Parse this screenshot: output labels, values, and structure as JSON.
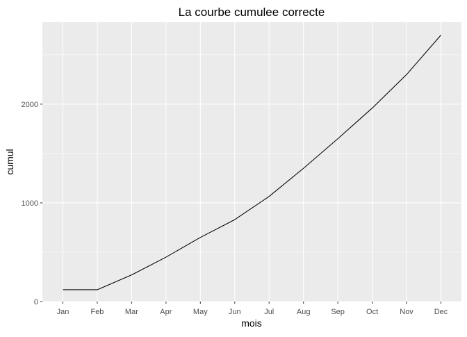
{
  "chart_data": {
    "type": "line",
    "title": "La courbe cumulee correcte",
    "xlabel": "mois",
    "ylabel": "cumul",
    "categories": [
      "Jan",
      "Feb",
      "Mar",
      "Apr",
      "May",
      "Jun",
      "Jul",
      "Aug",
      "Sep",
      "Oct",
      "Nov",
      "Dec"
    ],
    "series": [
      {
        "values": [
          120,
          120,
          270,
          450,
          650,
          830,
          1065,
          1350,
          1650,
          1960,
          2300,
          2700
        ],
        "color": "#000000"
      }
    ],
    "y_ticks": [
      0,
      1000,
      2000
    ],
    "y_tick_labels": [
      "0",
      "1000",
      "2000"
    ],
    "ylim": [
      0,
      2830
    ],
    "grid": true,
    "panel_background": "#ebebeb",
    "grid_color": "#ffffff"
  }
}
